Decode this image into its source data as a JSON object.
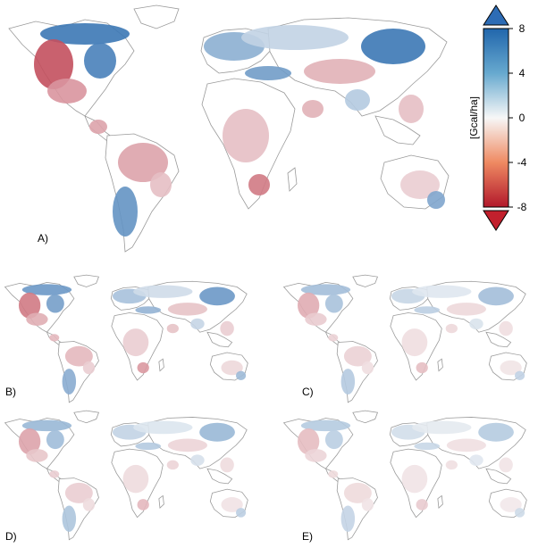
{
  "figure": {
    "panels": [
      {
        "id": "A",
        "label": "A)",
        "intensity": 1.0
      },
      {
        "id": "B",
        "label": "B)",
        "intensity": 0.75
      },
      {
        "id": "C",
        "label": "C)",
        "intensity": 0.45
      },
      {
        "id": "D",
        "label": "D)",
        "intensity": 0.5
      },
      {
        "id": "E",
        "label": "E)",
        "intensity": 0.35
      }
    ],
    "colorbar": {
      "unit": "[Gcal/ha]",
      "ticks": [
        "8",
        "4",
        "0",
        "-4",
        "-8"
      ],
      "range": [
        -8,
        8
      ],
      "colors": {
        "max": "#2166ac",
        "mid": "#f7f7f7",
        "min": "#b2182b",
        "arrow_up": "#2d6cb5",
        "arrow_down": "#c2202d"
      }
    }
  }
}
